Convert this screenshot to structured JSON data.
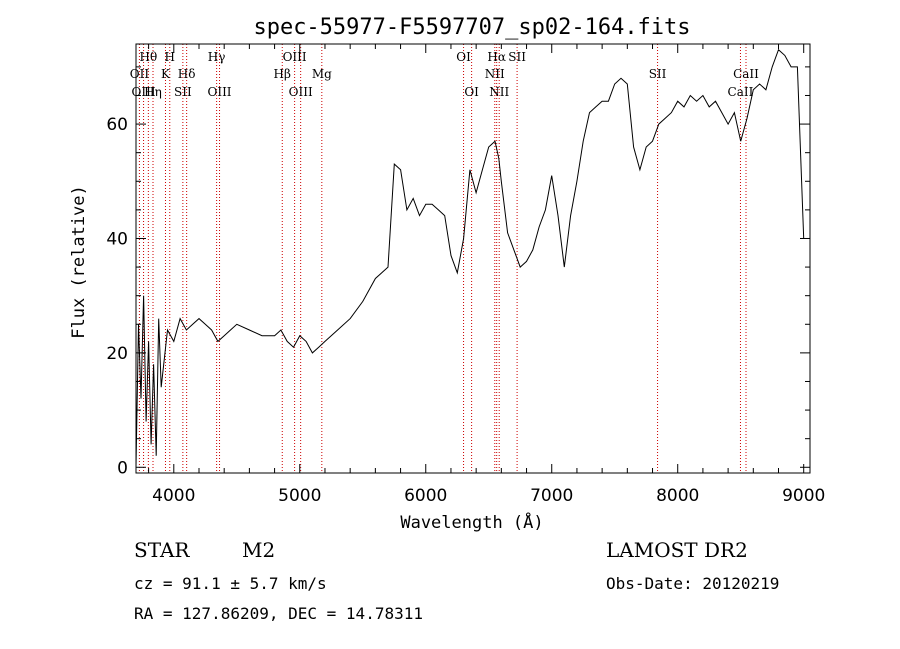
{
  "chart_data": {
    "type": "line",
    "title": "spec-55977-F5597707_sp02-164.fits",
    "xlabel": "Wavelength (Å)",
    "ylabel": "Flux (relative)",
    "xlim": [
      3700,
      9050
    ],
    "ylim": [
      -1,
      74
    ],
    "xticks": [
      4000,
      5000,
      6000,
      7000,
      8000,
      9000
    ],
    "yticks": [
      0,
      20,
      40,
      60
    ],
    "grid": false,
    "line_color": "#000000",
    "marker_color": "#cc0000",
    "series": [
      {
        "x": [
          3700,
          3720,
          3740,
          3760,
          3780,
          3800,
          3820,
          3840,
          3860,
          3880,
          3900,
          3950,
          4000,
          4050,
          4100,
          4150,
          4200,
          4250,
          4300,
          4350,
          4400,
          4450,
          4500,
          4600,
          4700,
          4800,
          4850,
          4900,
          4950,
          5000,
          5050,
          5100,
          5150,
          5200,
          5300,
          5400,
          5500,
          5600,
          5700,
          5750,
          5800,
          5850,
          5900,
          5950,
          6000,
          6050,
          6100,
          6150,
          6200,
          6250,
          6300,
          6350,
          6400,
          6450,
          6500,
          6550,
          6580,
          6600,
          6650,
          6700,
          6750,
          6800,
          6850,
          6900,
          6950,
          7000,
          7050,
          7100,
          7150,
          7200,
          7250,
          7300,
          7350,
          7400,
          7450,
          7500,
          7550,
          7600,
          7650,
          7700,
          7750,
          7800,
          7850,
          7900,
          7950,
          8000,
          8050,
          8100,
          8150,
          8200,
          8250,
          8300,
          8350,
          8400,
          8450,
          8500,
          8550,
          8600,
          8650,
          8700,
          8750,
          8800,
          8850,
          8900,
          8950,
          9000
        ],
        "y": [
          0,
          25,
          12,
          30,
          8,
          22,
          4,
          18,
          2,
          26,
          14,
          24,
          22,
          26,
          24,
          25,
          26,
          25,
          24,
          22,
          23,
          24,
          25,
          24,
          23,
          23,
          24,
          22,
          21,
          23,
          22,
          20,
          21,
          22,
          24,
          26,
          29,
          33,
          35,
          53,
          52,
          45,
          47,
          44,
          46,
          46,
          45,
          44,
          37,
          34,
          40,
          52,
          48,
          52,
          56,
          57,
          54,
          50,
          41,
          38,
          35,
          36,
          38,
          42,
          45,
          51,
          44,
          35,
          44,
          50,
          57,
          62,
          63,
          64,
          64,
          67,
          68,
          67,
          56,
          52,
          56,
          57,
          60,
          61,
          62,
          64,
          63,
          65,
          64,
          65,
          63,
          64,
          62,
          60,
          62,
          57,
          61,
          66,
          67,
          66,
          70,
          73,
          72,
          70,
          70,
          40
        ]
      }
    ],
    "spectral_lines": [
      {
        "label": "OII",
        "wavelength": 3727,
        "row": 1
      },
      {
        "label": "Hθ",
        "wavelength": 3798,
        "row": 0
      },
      {
        "label": "OIII",
        "wavelength": 3760,
        "row": 2
      },
      {
        "label": "Hη",
        "wavelength": 3835,
        "row": 2
      },
      {
        "label": "K",
        "wavelength": 3934,
        "row": 1
      },
      {
        "label": "H",
        "wavelength": 3968,
        "row": 0
      },
      {
        "label": "SII",
        "wavelength": 4072,
        "row": 2
      },
      {
        "label": "Hδ",
        "wavelength": 4102,
        "row": 1
      },
      {
        "label": "Hγ",
        "wavelength": 4340,
        "row": 0
      },
      {
        "label": "OIII",
        "wavelength": 4363,
        "row": 2
      },
      {
        "label": "Hβ",
        "wavelength": 4861,
        "row": 1
      },
      {
        "label": "OIII",
        "wavelength": 4959,
        "row": 0
      },
      {
        "label": "OIII",
        "wavelength": 5007,
        "row": 2
      },
      {
        "label": "Mg",
        "wavelength": 5175,
        "row": 1
      },
      {
        "label": "OI",
        "wavelength": 6300,
        "row": 0
      },
      {
        "label": "OI",
        "wavelength": 6364,
        "row": 2
      },
      {
        "label": "NII",
        "wavelength": 6548,
        "row": 1
      },
      {
        "label": "Hα",
        "wavelength": 6563,
        "row": 0
      },
      {
        "label": "NII",
        "wavelength": 6583,
        "row": 2
      },
      {
        "label": "SII",
        "wavelength": 6725,
        "row": 0
      },
      {
        "label": "SII",
        "wavelength": 7840,
        "row": 1
      },
      {
        "label": "CaII",
        "wavelength": 8542,
        "row": 1
      },
      {
        "label": "CaII",
        "wavelength": 8498,
        "row": 2
      }
    ]
  },
  "info": {
    "object_class": "STAR",
    "subclass": "M2",
    "survey": "LAMOST DR2",
    "cz": "cz = 91.1 ± 5.7 km/s",
    "obs_date": "Obs-Date: 20120219",
    "coords": "RA = 127.86209, DEC =  14.78311"
  }
}
